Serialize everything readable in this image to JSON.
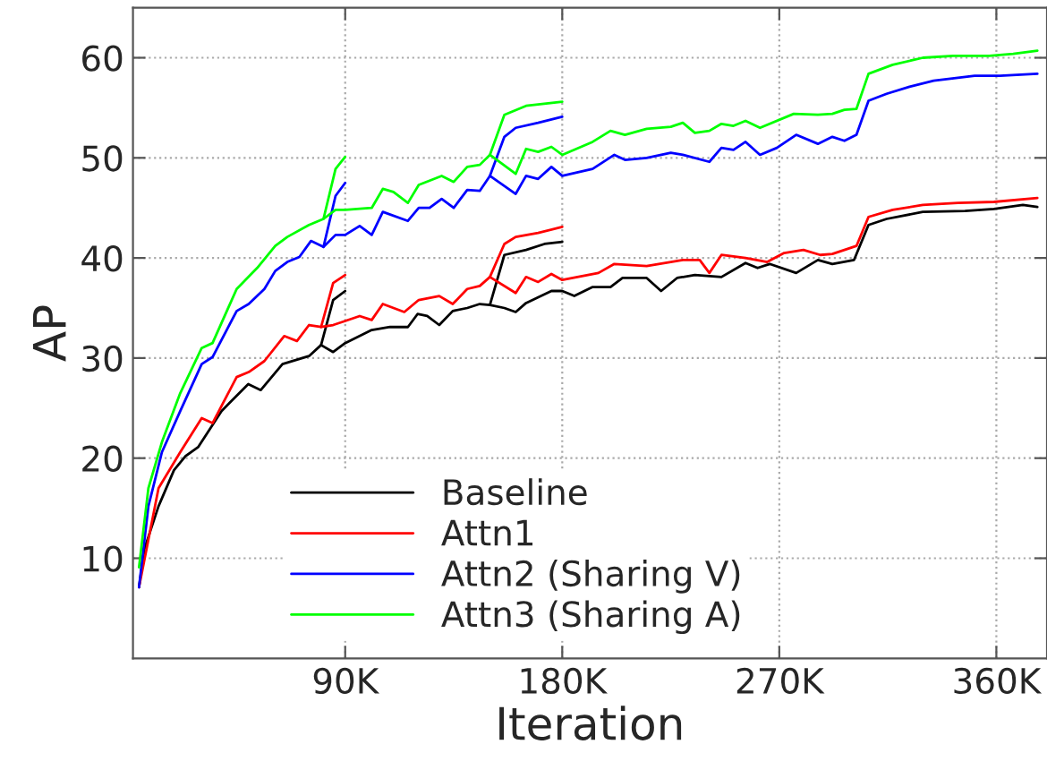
{
  "chart_data": {
    "type": "line",
    "xlabel": "Iteration",
    "ylabel": "AP",
    "xlim": [
      2000,
      381000
    ],
    "ylim": [
      0,
      65
    ],
    "xticks": [
      {
        "value": 90000,
        "label": "90K"
      },
      {
        "value": 180000,
        "label": "180K"
      },
      {
        "value": 270000,
        "label": "270K"
      },
      {
        "value": 360000,
        "label": "360K"
      }
    ],
    "yticks": [
      10,
      20,
      30,
      40,
      50,
      60
    ],
    "grid": true,
    "legend": "bottom",
    "line_style": "solid",
    "marker": "none",
    "series": [
      {
        "name": "Baseline",
        "color": "#000000",
        "x": [
          4500,
          6700,
          12600,
          19000,
          23800,
          29000,
          38700,
          49800,
          55000,
          64000,
          75000,
          80000,
          85000,
          90000,
          101000,
          108600,
          116000,
          120000,
          124000,
          129000,
          134600,
          140600,
          145800,
          150000,
          156000,
          160700,
          165000,
          175500,
          180000,
          185000,
          192600,
          200000,
          205000,
          215000,
          221000,
          227600,
          235000,
          246000,
          256000,
          261000,
          266000,
          277000,
          286000,
          292000,
          301000,
          307000,
          314500,
          329500,
          347000,
          359000,
          371000,
          377000
        ],
        "values": [
          7.1,
          10.9,
          15.2,
          18.8,
          20.2,
          21.1,
          24.7,
          27.4,
          26.8,
          29.4,
          30.2,
          31.3,
          30.6,
          31.5,
          32.8,
          33.1,
          33.1,
          34.4,
          34.2,
          33.3,
          34.7,
          35.0,
          35.4,
          35.3,
          35.0,
          34.6,
          35.5,
          36.7,
          36.7,
          36.2,
          37.1,
          37.1,
          38.0,
          38.0,
          36.7,
          38.0,
          38.3,
          38.1,
          39.5,
          39.0,
          39.4,
          38.5,
          39.8,
          39.4,
          39.8,
          43.3,
          43.9,
          44.6,
          44.7,
          44.9,
          45.3,
          45.1
        ]
      },
      {
        "color": "#000000",
        "x": [
          80000,
          85000,
          90000
        ],
        "values": [
          31.3,
          35.8,
          36.7
        ]
      },
      {
        "color": "#000000",
        "x": [
          150000,
          156000,
          165000,
          172600,
          180000
        ],
        "values": [
          35.3,
          40.3,
          40.8,
          41.4,
          41.6
        ]
      },
      {
        "name": "Attn1",
        "color": "#ff0000",
        "x": [
          4500,
          12600,
          21600,
          30500,
          35000,
          45000,
          50000,
          56500,
          64700,
          70000,
          75000,
          80000,
          85000,
          90000,
          96000,
          101000,
          105600,
          114500,
          120500,
          129000,
          134600,
          140600,
          145800,
          150000,
          160700,
          165000,
          170000,
          175500,
          180000,
          195000,
          201600,
          215000,
          230000,
          237000,
          241000,
          246000,
          256000,
          265000,
          272000,
          280000,
          287000,
          292000,
          302000,
          307000,
          317000,
          329500,
          344000,
          359000,
          377000
        ],
        "values": [
          7.1,
          17.0,
          20.6,
          24.0,
          23.5,
          28.1,
          28.6,
          29.7,
          32.2,
          31.7,
          33.3,
          33.1,
          33.3,
          33.7,
          34.2,
          33.8,
          35.4,
          34.6,
          35.8,
          36.2,
          35.4,
          36.9,
          37.2,
          38.1,
          36.5,
          38.1,
          37.6,
          38.4,
          37.8,
          38.5,
          39.4,
          39.2,
          39.8,
          39.8,
          38.5,
          40.3,
          40.0,
          39.6,
          40.5,
          40.8,
          40.3,
          40.4,
          41.2,
          44.1,
          44.8,
          45.3,
          45.5,
          45.6,
          46.0
        ]
      },
      {
        "color": "#ff0000",
        "x": [
          80000,
          85000,
          90000
        ],
        "values": [
          33.1,
          37.5,
          38.3
        ]
      },
      {
        "color": "#ff0000",
        "x": [
          150000,
          156000,
          160700,
          170000,
          180000
        ],
        "values": [
          38.1,
          41.4,
          42.1,
          42.5,
          43.1
        ]
      },
      {
        "name": "Attn2 (Sharing V)",
        "color": "#0000ff",
        "x": [
          4500,
          8400,
          14000,
          21600,
          30500,
          35000,
          45000,
          50000,
          56500,
          61000,
          66000,
          71000,
          75800,
          81000,
          86000,
          90000,
          96000,
          101000,
          105600,
          116000,
          120500,
          125000,
          130000,
          135000,
          140600,
          145800,
          150000,
          160700,
          165000,
          170000,
          175500,
          180000,
          192600,
          201600,
          206000,
          215000,
          225000,
          230000,
          241000,
          246000,
          251000,
          256000,
          262000,
          269000,
          277000,
          286000,
          292000,
          297000,
          302000,
          307000,
          314500,
          324000,
          334000,
          351000,
          361500,
          377000
        ],
        "values": [
          7.1,
          15.2,
          20.6,
          24.7,
          29.4,
          30.1,
          34.7,
          35.4,
          36.9,
          38.7,
          39.6,
          40.1,
          41.7,
          41.1,
          42.3,
          42.3,
          43.2,
          42.3,
          44.6,
          43.7,
          45.0,
          45.0,
          45.9,
          45.0,
          46.8,
          46.7,
          48.2,
          46.4,
          48.2,
          47.9,
          49.1,
          48.2,
          48.9,
          50.3,
          49.8,
          50.0,
          50.5,
          50.3,
          49.6,
          51.0,
          50.8,
          51.6,
          50.3,
          51.0,
          52.3,
          51.4,
          52.1,
          51.7,
          52.3,
          55.7,
          56.4,
          57.1,
          57.7,
          58.2,
          58.2,
          58.4
        ]
      },
      {
        "color": "#0000ff",
        "x": [
          81000,
          86000,
          90000
        ],
        "values": [
          41.1,
          46.2,
          47.5
        ]
      },
      {
        "color": "#0000ff",
        "x": [
          150000,
          156000,
          160700,
          170000,
          180000
        ],
        "values": [
          48.2,
          52.1,
          53.0,
          53.5,
          54.1
        ]
      },
      {
        "name": "Attn3 (Sharing A)",
        "color": "#00ff00",
        "x": [
          4500,
          8400,
          14000,
          21600,
          30500,
          35000,
          45000,
          53500,
          61000,
          66000,
          75000,
          81000,
          86000,
          90000,
          101000,
          105600,
          110000,
          116000,
          120500,
          130000,
          135000,
          140600,
          145800,
          150000,
          160700,
          165000,
          170000,
          175500,
          180000,
          192600,
          200000,
          206000,
          215000,
          225000,
          230000,
          235000,
          241000,
          246000,
          251000,
          256000,
          262000,
          276000,
          286000,
          292000,
          297000,
          302000,
          307000,
          317000,
          329500,
          342000,
          357000,
          367000,
          377000
        ],
        "values": [
          9.1,
          17.0,
          21.6,
          26.5,
          31.0,
          31.5,
          36.9,
          39.0,
          41.2,
          42.1,
          43.3,
          43.9,
          44.8,
          44.8,
          45.0,
          46.9,
          46.6,
          45.5,
          47.3,
          48.2,
          47.6,
          49.1,
          49.3,
          50.3,
          48.4,
          50.9,
          50.6,
          51.1,
          50.3,
          51.6,
          52.7,
          52.3,
          52.9,
          53.1,
          53.5,
          52.5,
          52.7,
          53.4,
          53.2,
          53.7,
          53.0,
          54.4,
          54.3,
          54.4,
          54.8,
          54.9,
          58.4,
          59.3,
          60.0,
          60.2,
          60.2,
          60.4,
          60.7
        ]
      },
      {
        "color": "#00ff00",
        "x": [
          81000,
          86000,
          90000
        ],
        "values": [
          43.9,
          48.9,
          50.1
        ]
      },
      {
        "color": "#00ff00",
        "x": [
          150000,
          156000,
          165000,
          180000
        ],
        "values": [
          50.3,
          54.3,
          55.2,
          55.6
        ]
      }
    ]
  }
}
